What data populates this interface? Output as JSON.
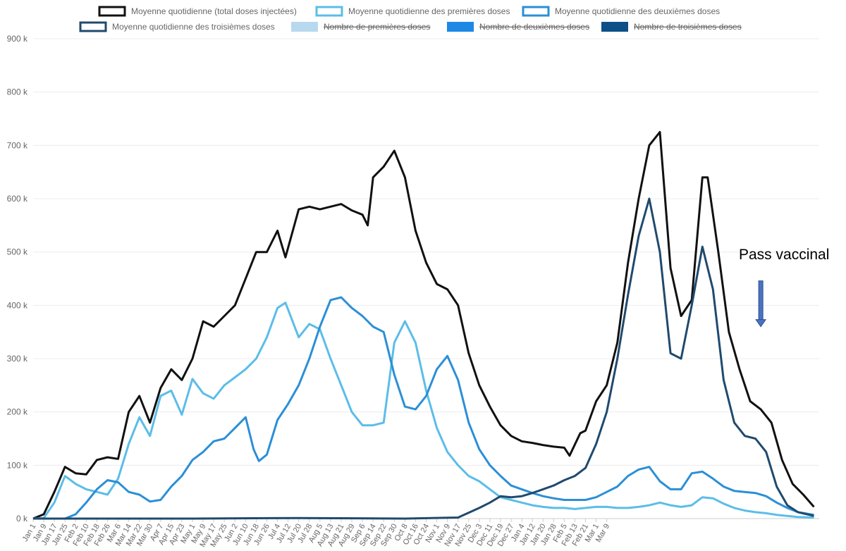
{
  "chart_data": {
    "type": "line",
    "title": "",
    "xlabel": "",
    "ylabel": "",
    "y_ticks": [
      "0 k",
      "100 k",
      "200 k",
      "300 k",
      "400 k",
      "500 k",
      "600 k",
      "700 k",
      "800 k",
      "900 k"
    ],
    "ylim": [
      0,
      900000
    ],
    "x_ticks": [
      "Jan 1",
      "Jan 9",
      "Jan 17",
      "Jan 25",
      "Feb 2",
      "Feb 10",
      "Feb 18",
      "Feb 26",
      "Mar 6",
      "Mar 14",
      "Mar 22",
      "Mar 30",
      "Apr 7",
      "Apr 15",
      "Apr 23",
      "May 1",
      "May 9",
      "May 17",
      "May 25",
      "Jun 2",
      "Jun 10",
      "Jun 18",
      "Jun 26",
      "Jul 4",
      "Jul 12",
      "Jul 20",
      "Jul 28",
      "Aug 5",
      "Aug 13",
      "Aug 21",
      "Aug 29",
      "Sep 6",
      "Sep 14",
      "Sep 22",
      "Sep 30",
      "Oct 8",
      "Oct 16",
      "Oct 24",
      "Nov 1",
      "Nov 9",
      "Nov 17",
      "Nov 25",
      "Dec 3",
      "Dec 11",
      "Dec 19",
      "Dec 27",
      "Jan 4",
      "Jan 12",
      "Jan 20",
      "Jan 28",
      "Feb 5",
      "Feb 13",
      "Feb 21",
      "Mar 1",
      "Mar 9"
    ],
    "x_unit": "days since Jan 1 (tick every 8 days)",
    "grid": true,
    "legend_position": "top",
    "legend": [
      {
        "label": "Moyenne quotidienne (total doses injectées)",
        "color": "#111111",
        "hidden": false
      },
      {
        "label": "Moyenne quotidienne des premières doses",
        "color": "#5bbde8",
        "hidden": false
      },
      {
        "label": "Moyenne quotidienne des deuxièmes doses",
        "color": "#2b8fd6",
        "hidden": false
      },
      {
        "label": "Moyenne quotidienne des troisièmes doses",
        "color": "#1f4a6e",
        "hidden": false
      },
      {
        "label": "Nombre de premières doses",
        "color": "#b8d8f0",
        "hidden": true
      },
      {
        "label": "Nombre de deuxièmes doses",
        "color": "#1e88e5",
        "hidden": true
      },
      {
        "label": "Nombre de troisièmes doses",
        "color": "#0d4f87",
        "hidden": true
      }
    ],
    "series": [
      {
        "name": "Moyenne quotidienne (total doses injectées)",
        "color": "#111111",
        "points": [
          [
            0,
            0
          ],
          [
            8,
            8000
          ],
          [
            16,
            50000
          ],
          [
            24,
            97000
          ],
          [
            32,
            85000
          ],
          [
            40,
            83000
          ],
          [
            48,
            110000
          ],
          [
            56,
            115000
          ],
          [
            64,
            112000
          ],
          [
            72,
            200000
          ],
          [
            80,
            230000
          ],
          [
            88,
            180000
          ],
          [
            96,
            245000
          ],
          [
            104,
            280000
          ],
          [
            112,
            260000
          ],
          [
            120,
            300000
          ],
          [
            128,
            370000
          ],
          [
            136,
            360000
          ],
          [
            144,
            380000
          ],
          [
            152,
            400000
          ],
          [
            160,
            450000
          ],
          [
            168,
            500000
          ],
          [
            176,
            500000
          ],
          [
            184,
            540000
          ],
          [
            190,
            490000
          ],
          [
            200,
            580000
          ],
          [
            208,
            585000
          ],
          [
            216,
            580000
          ],
          [
            224,
            585000
          ],
          [
            232,
            590000
          ],
          [
            240,
            578000
          ],
          [
            248,
            570000
          ],
          [
            252,
            550000
          ],
          [
            256,
            640000
          ],
          [
            264,
            660000
          ],
          [
            272,
            690000
          ],
          [
            280,
            640000
          ],
          [
            288,
            540000
          ],
          [
            296,
            480000
          ],
          [
            304,
            440000
          ],
          [
            312,
            430000
          ],
          [
            320,
            400000
          ],
          [
            328,
            310000
          ],
          [
            336,
            250000
          ],
          [
            344,
            210000
          ],
          [
            352,
            175000
          ],
          [
            360,
            155000
          ],
          [
            368,
            145000
          ],
          [
            376,
            142000
          ],
          [
            384,
            138000
          ],
          [
            392,
            135000
          ],
          [
            400,
            133000
          ],
          [
            404,
            118000
          ],
          [
            412,
            160000
          ],
          [
            416,
            165000
          ],
          [
            424,
            220000
          ],
          [
            432,
            250000
          ],
          [
            440,
            330000
          ],
          [
            448,
            480000
          ],
          [
            456,
            600000
          ],
          [
            464,
            700000
          ],
          [
            472,
            725000
          ],
          [
            480,
            470000
          ],
          [
            488,
            380000
          ],
          [
            496,
            410000
          ],
          [
            504,
            640000
          ],
          [
            508,
            640000
          ],
          [
            516,
            500000
          ],
          [
            524,
            350000
          ],
          [
            532,
            280000
          ],
          [
            540,
            220000
          ],
          [
            548,
            205000
          ],
          [
            556,
            180000
          ],
          [
            564,
            110000
          ],
          [
            572,
            65000
          ],
          [
            580,
            45000
          ],
          [
            588,
            22000
          ]
        ]
      },
      {
        "name": "Moyenne quotidienne des premières doses",
        "color": "#5bbde8",
        "points": [
          [
            0,
            0
          ],
          [
            8,
            1000
          ],
          [
            16,
            30000
          ],
          [
            24,
            80000
          ],
          [
            32,
            65000
          ],
          [
            40,
            55000
          ],
          [
            48,
            50000
          ],
          [
            56,
            45000
          ],
          [
            64,
            75000
          ],
          [
            72,
            140000
          ],
          [
            80,
            190000
          ],
          [
            88,
            155000
          ],
          [
            96,
            230000
          ],
          [
            104,
            240000
          ],
          [
            112,
            195000
          ],
          [
            120,
            262000
          ],
          [
            128,
            235000
          ],
          [
            136,
            225000
          ],
          [
            144,
            250000
          ],
          [
            152,
            265000
          ],
          [
            160,
            280000
          ],
          [
            168,
            300000
          ],
          [
            176,
            340000
          ],
          [
            184,
            395000
          ],
          [
            190,
            405000
          ],
          [
            200,
            340000
          ],
          [
            208,
            365000
          ],
          [
            216,
            355000
          ],
          [
            224,
            300000
          ],
          [
            232,
            250000
          ],
          [
            240,
            200000
          ],
          [
            248,
            175000
          ],
          [
            256,
            175000
          ],
          [
            264,
            180000
          ],
          [
            272,
            330000
          ],
          [
            280,
            370000
          ],
          [
            288,
            330000
          ],
          [
            296,
            240000
          ],
          [
            304,
            170000
          ],
          [
            312,
            125000
          ],
          [
            320,
            100000
          ],
          [
            328,
            80000
          ],
          [
            336,
            70000
          ],
          [
            344,
            55000
          ],
          [
            352,
            40000
          ],
          [
            360,
            35000
          ],
          [
            368,
            30000
          ],
          [
            376,
            25000
          ],
          [
            384,
            22000
          ],
          [
            392,
            20000
          ],
          [
            400,
            20000
          ],
          [
            408,
            18000
          ],
          [
            416,
            20000
          ],
          [
            424,
            22000
          ],
          [
            432,
            22000
          ],
          [
            440,
            20000
          ],
          [
            448,
            20000
          ],
          [
            456,
            22000
          ],
          [
            464,
            25000
          ],
          [
            472,
            30000
          ],
          [
            480,
            25000
          ],
          [
            488,
            22000
          ],
          [
            496,
            25000
          ],
          [
            504,
            40000
          ],
          [
            512,
            38000
          ],
          [
            520,
            28000
          ],
          [
            528,
            20000
          ],
          [
            536,
            15000
          ],
          [
            544,
            12000
          ],
          [
            552,
            10000
          ],
          [
            560,
            7000
          ],
          [
            568,
            5000
          ],
          [
            576,
            3000
          ],
          [
            588,
            2000
          ]
        ]
      },
      {
        "name": "Moyenne quotidienne des deuxièmes doses",
        "color": "#2b8fd6",
        "points": [
          [
            0,
            0
          ],
          [
            24,
            0
          ],
          [
            32,
            8000
          ],
          [
            40,
            30000
          ],
          [
            48,
            55000
          ],
          [
            56,
            72000
          ],
          [
            64,
            68000
          ],
          [
            72,
            50000
          ],
          [
            80,
            45000
          ],
          [
            88,
            32000
          ],
          [
            96,
            35000
          ],
          [
            104,
            60000
          ],
          [
            112,
            80000
          ],
          [
            120,
            110000
          ],
          [
            128,
            125000
          ],
          [
            136,
            145000
          ],
          [
            144,
            150000
          ],
          [
            152,
            170000
          ],
          [
            160,
            190000
          ],
          [
            166,
            130000
          ],
          [
            170,
            108000
          ],
          [
            176,
            120000
          ],
          [
            184,
            185000
          ],
          [
            192,
            215000
          ],
          [
            200,
            250000
          ],
          [
            208,
            300000
          ],
          [
            216,
            360000
          ],
          [
            224,
            410000
          ],
          [
            232,
            415000
          ],
          [
            240,
            395000
          ],
          [
            248,
            380000
          ],
          [
            256,
            360000
          ],
          [
            264,
            350000
          ],
          [
            272,
            270000
          ],
          [
            280,
            210000
          ],
          [
            288,
            205000
          ],
          [
            296,
            230000
          ],
          [
            304,
            280000
          ],
          [
            312,
            305000
          ],
          [
            320,
            260000
          ],
          [
            328,
            180000
          ],
          [
            336,
            130000
          ],
          [
            344,
            100000
          ],
          [
            352,
            80000
          ],
          [
            360,
            62000
          ],
          [
            368,
            55000
          ],
          [
            376,
            48000
          ],
          [
            384,
            42000
          ],
          [
            392,
            38000
          ],
          [
            400,
            35000
          ],
          [
            408,
            35000
          ],
          [
            416,
            35000
          ],
          [
            424,
            40000
          ],
          [
            432,
            50000
          ],
          [
            440,
            60000
          ],
          [
            448,
            80000
          ],
          [
            456,
            92000
          ],
          [
            464,
            97000
          ],
          [
            472,
            70000
          ],
          [
            480,
            55000
          ],
          [
            488,
            55000
          ],
          [
            496,
            85000
          ],
          [
            504,
            88000
          ],
          [
            512,
            75000
          ],
          [
            520,
            60000
          ],
          [
            528,
            52000
          ],
          [
            536,
            50000
          ],
          [
            544,
            48000
          ],
          [
            552,
            42000
          ],
          [
            560,
            30000
          ],
          [
            568,
            20000
          ],
          [
            576,
            12000
          ],
          [
            588,
            7000
          ]
        ]
      },
      {
        "name": "Moyenne quotidienne des troisièmes doses",
        "color": "#1f4a6e",
        "points": [
          [
            0,
            0
          ],
          [
            120,
            0
          ],
          [
            200,
            1000
          ],
          [
            280,
            0
          ],
          [
            320,
            2000
          ],
          [
            336,
            20000
          ],
          [
            344,
            30000
          ],
          [
            352,
            42000
          ],
          [
            360,
            40000
          ],
          [
            368,
            42000
          ],
          [
            376,
            48000
          ],
          [
            384,
            55000
          ],
          [
            392,
            62000
          ],
          [
            400,
            72000
          ],
          [
            408,
            80000
          ],
          [
            416,
            95000
          ],
          [
            424,
            140000
          ],
          [
            432,
            200000
          ],
          [
            440,
            300000
          ],
          [
            448,
            420000
          ],
          [
            456,
            530000
          ],
          [
            464,
            600000
          ],
          [
            472,
            500000
          ],
          [
            480,
            310000
          ],
          [
            488,
            300000
          ],
          [
            496,
            400000
          ],
          [
            504,
            510000
          ],
          [
            512,
            430000
          ],
          [
            520,
            260000
          ],
          [
            528,
            180000
          ],
          [
            536,
            155000
          ],
          [
            544,
            150000
          ],
          [
            552,
            125000
          ],
          [
            560,
            60000
          ],
          [
            568,
            25000
          ],
          [
            576,
            12000
          ],
          [
            588,
            5000
          ]
        ]
      }
    ],
    "annotation": {
      "text": "Pass vaccinal",
      "arrow_x": 548,
      "arrow_y": 360000
    }
  }
}
